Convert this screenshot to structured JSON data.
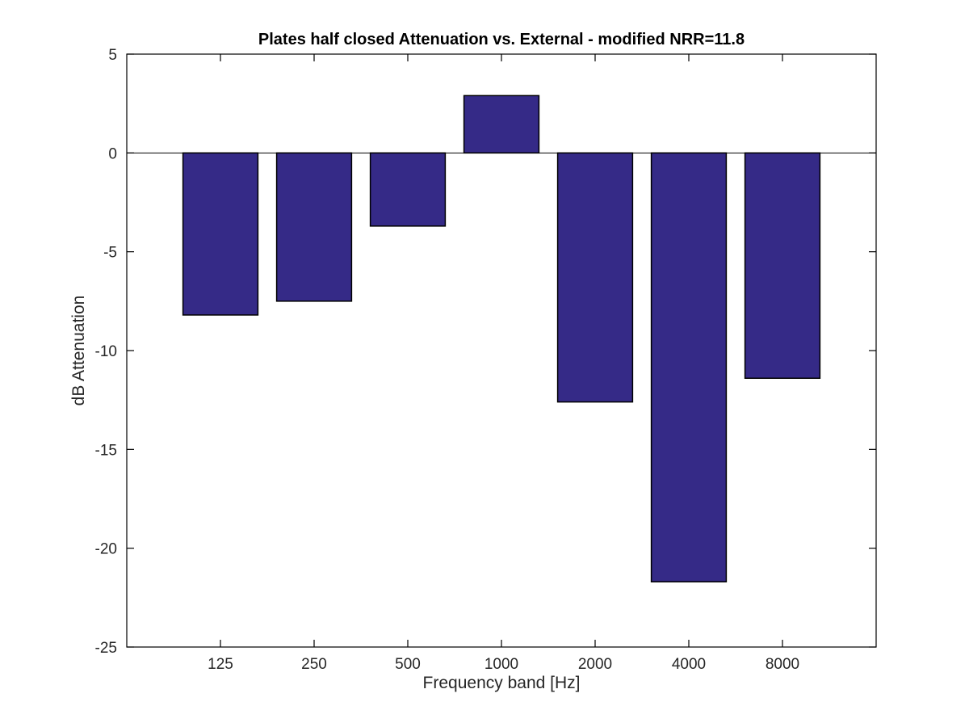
{
  "chart_data": {
    "type": "bar",
    "title": "Plates half closed Attenuation vs. External - modified NRR=11.8",
    "xlabel": "Frequency band [Hz]",
    "ylabel": "dB Attenuation",
    "categories": [
      "125",
      "250",
      "500",
      "1000",
      "2000",
      "4000",
      "8000"
    ],
    "values": [
      -8.2,
      -7.5,
      -3.7,
      2.9,
      -12.6,
      -21.7,
      -11.4
    ],
    "ylim": [
      -25,
      5
    ],
    "yticks": [
      "5",
      "0",
      "-5",
      "-10",
      "-15",
      "-20",
      "-25"
    ],
    "bar_color": "#352a87",
    "grid": false,
    "legend": "none"
  }
}
